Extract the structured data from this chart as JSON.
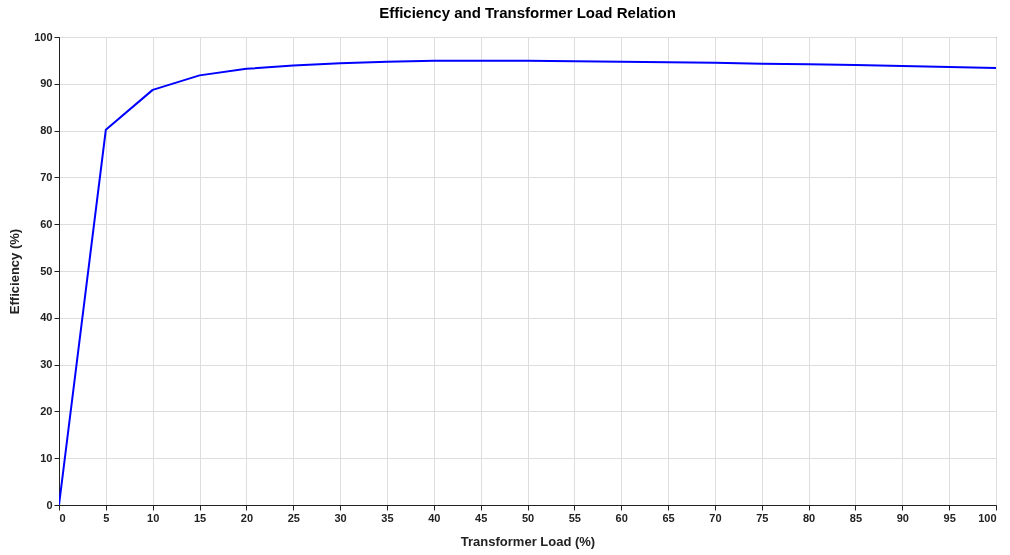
{
  "chart_data": {
    "type": "line",
    "title": "Efficiency and Transformer Load Relation",
    "xlabel": "Transformer Load (%)",
    "ylabel": "Efficiency (%)",
    "x": [
      0,
      5,
      10,
      15,
      20,
      25,
      30,
      35,
      40,
      45,
      50,
      55,
      60,
      65,
      70,
      75,
      80,
      85,
      90,
      95,
      100
    ],
    "series": [
      {
        "color": "#0000ff",
        "values": [
          0,
          80.2,
          88.7,
          91.8,
          93.2,
          93.9,
          94.4,
          94.7,
          94.9,
          94.9,
          94.9,
          94.8,
          94.7,
          94.6,
          94.5,
          94.3,
          94.2,
          94.0,
          93.8,
          93.6,
          93.4
        ]
      }
    ],
    "xlim": [
      0,
      100
    ],
    "xticks": [
      0,
      5,
      10,
      15,
      20,
      25,
      30,
      35,
      40,
      45,
      50,
      55,
      60,
      65,
      70,
      75,
      80,
      85,
      90,
      95,
      100
    ],
    "ylim": [
      0,
      100
    ],
    "yticks": [
      0,
      10,
      20,
      30,
      40,
      50,
      60,
      70,
      80,
      90,
      100
    ],
    "grid": true,
    "line_style": "solid",
    "marker": "none"
  }
}
